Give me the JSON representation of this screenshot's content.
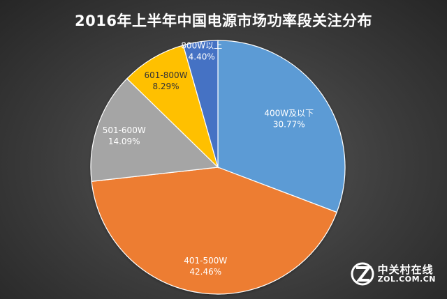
{
  "title": "2016年上半年中国电源市场功率段关注分布",
  "chart_data": {
    "type": "pie",
    "title": "2016年上半年中国电源市场功率段关注分布",
    "slices": [
      {
        "label": "400W及以下",
        "value": 30.77,
        "value_label": "30.77%",
        "color": "#5b9bd5"
      },
      {
        "label": "401-500W",
        "value": 42.46,
        "value_label": "42.46%",
        "color": "#ed7d31"
      },
      {
        "label": "501-600W",
        "value": 14.09,
        "value_label": "14.09%",
        "color": "#a5a5a5"
      },
      {
        "label": "601-800W",
        "value": 8.29,
        "value_label": "8.29%",
        "color": "#ffc000"
      },
      {
        "label": "800W以上",
        "value": 4.4,
        "value_label": "4.40%",
        "color": "#4472c4"
      }
    ],
    "start_angle": "12 o'clock",
    "direction": "clockwise",
    "legend": "none"
  },
  "watermark": {
    "brand_cn": "中关村在线",
    "brand_en": "ZOL.COM.CN"
  }
}
